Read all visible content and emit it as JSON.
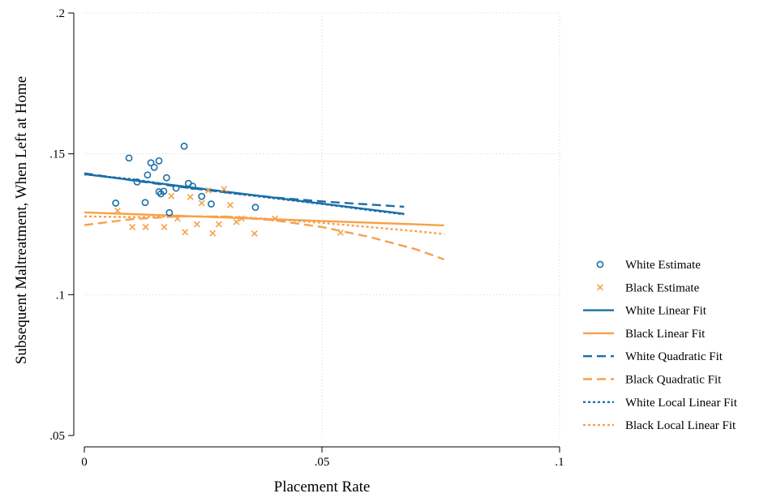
{
  "chart_data": {
    "type": "scatter",
    "title": "",
    "xlabel": "Placement Rate",
    "ylabel": "Subsequent Maltreatment, When Left at Home",
    "xlim": [
      0,
      0.1
    ],
    "ylim": [
      0.05,
      0.2
    ],
    "xticks": [
      0,
      0.05,
      0.1
    ],
    "xtick_labels": [
      "0",
      ".05",
      ".1"
    ],
    "yticks": [
      0.05,
      0.1,
      0.15,
      0.2
    ],
    "ytick_labels": [
      ".05",
      ".1",
      ".15",
      ".2"
    ],
    "grid": true,
    "legend_position": "right",
    "colors": {
      "white": "#1a6fa8",
      "black": "#f7a14a"
    },
    "series": [
      {
        "name": "White Estimate",
        "kind": "scatter",
        "marker": "circle",
        "color": "#1a6fa8",
        "x": [
          0.0066,
          0.0094,
          0.0111,
          0.0128,
          0.0133,
          0.014,
          0.0147,
          0.0157,
          0.0157,
          0.0161,
          0.0167,
          0.0173,
          0.0179,
          0.0193,
          0.021,
          0.0219,
          0.0228,
          0.0247,
          0.0267,
          0.036
        ],
        "y": [
          0.1325,
          0.1485,
          0.14,
          0.1327,
          0.1425,
          0.1468,
          0.1452,
          0.1475,
          0.1365,
          0.1358,
          0.1367,
          0.1415,
          0.1291,
          0.1378,
          0.1527,
          0.1395,
          0.1385,
          0.1349,
          0.1322,
          0.131
        ]
      },
      {
        "name": "Black Estimate",
        "kind": "scatter",
        "marker": "x",
        "color": "#f7a14a",
        "x": [
          0.007,
          0.0101,
          0.0129,
          0.0168,
          0.0183,
          0.0196,
          0.0212,
          0.0223,
          0.0237,
          0.0247,
          0.0261,
          0.027,
          0.0283,
          0.0294,
          0.0307,
          0.032,
          0.0331,
          0.0358,
          0.0401,
          0.0539
        ],
        "y": [
          0.1298,
          0.124,
          0.124,
          0.124,
          0.135,
          0.127,
          0.1222,
          0.1347,
          0.125,
          0.1325,
          0.137,
          0.1218,
          0.125,
          0.1375,
          0.1318,
          0.1258,
          0.127,
          0.1217,
          0.127,
          0.122
        ]
      },
      {
        "name": "White Linear Fit",
        "kind": "line",
        "dash": "solid",
        "color": "#1a6fa8",
        "x": [
          0,
          0.0673
        ],
        "y": [
          0.1428,
          0.1287
        ]
      },
      {
        "name": "Black Linear Fit",
        "kind": "line",
        "dash": "solid",
        "color": "#f7a14a",
        "x": [
          0,
          0.0757
        ],
        "y": [
          0.1292,
          0.1246
        ]
      },
      {
        "name": "White Quadratic Fit",
        "kind": "line",
        "dash": "long",
        "color": "#1a6fa8",
        "x": [
          0,
          0.01,
          0.02,
          0.03,
          0.04,
          0.05,
          0.06,
          0.0673
        ],
        "y": [
          0.1431,
          0.1406,
          0.1383,
          0.1363,
          0.1345,
          0.1331,
          0.132,
          0.1312
        ]
      },
      {
        "name": "Black Quadratic Fit",
        "kind": "line",
        "dash": "long",
        "color": "#f7a14a",
        "x": [
          0,
          0.01,
          0.02,
          0.03,
          0.04,
          0.05,
          0.06,
          0.07,
          0.0757
        ],
        "y": [
          0.1247,
          0.1268,
          0.1278,
          0.1277,
          0.1264,
          0.124,
          0.1205,
          0.116,
          0.1125
        ]
      },
      {
        "name": "White Local Linear Fit",
        "kind": "line",
        "dash": "short",
        "color": "#1a6fa8",
        "x": [
          0,
          0.01,
          0.02,
          0.03,
          0.04,
          0.05,
          0.06,
          0.0673
        ],
        "y": [
          0.1427,
          0.141,
          0.1385,
          0.1362,
          0.1342,
          0.1322,
          0.13,
          0.1285
        ]
      },
      {
        "name": "Black Local Linear Fit",
        "kind": "line",
        "dash": "short",
        "color": "#f7a14a",
        "x": [
          0,
          0.01,
          0.02,
          0.03,
          0.04,
          0.05,
          0.06,
          0.07,
          0.0757
        ],
        "y": [
          0.1278,
          0.1275,
          0.1278,
          0.1277,
          0.1268,
          0.1255,
          0.124,
          0.1225,
          0.1215
        ]
      }
    ]
  }
}
